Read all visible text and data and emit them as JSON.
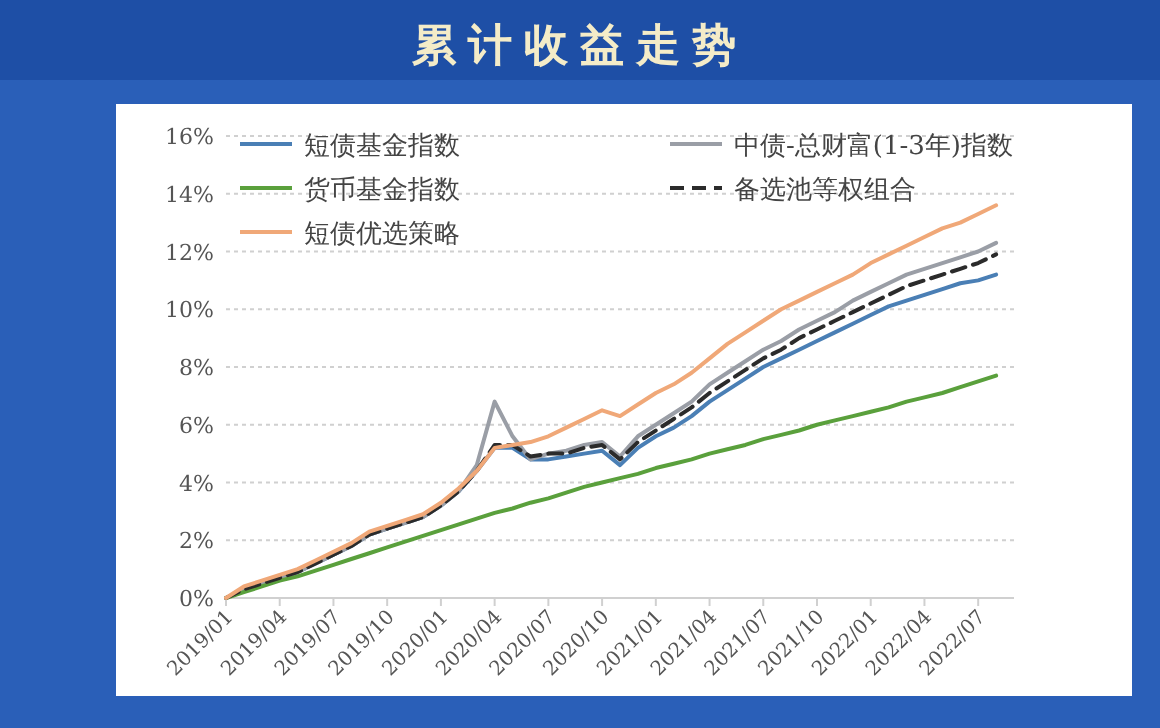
{
  "chart_data": {
    "type": "line",
    "title": "累计收益走势",
    "x": [
      "2019-01",
      "2019-02",
      "2019-03",
      "2019-04",
      "2019-05",
      "2019-06",
      "2019-07",
      "2019-08",
      "2019-09",
      "2019-10",
      "2019-11",
      "2019-12",
      "2020-01",
      "2020-02",
      "2020-03",
      "2020-04",
      "2020-05",
      "2020-06",
      "2020-07",
      "2020-08",
      "2020-09",
      "2020-10",
      "2020-11",
      "2020-12",
      "2021-01",
      "2021-02",
      "2021-03",
      "2021-04",
      "2021-05",
      "2021-06",
      "2021-07",
      "2021-08",
      "2021-09",
      "2021-10",
      "2021-11",
      "2021-12",
      "2022-01",
      "2022-02",
      "2022-03",
      "2022-04",
      "2022-05",
      "2022-06",
      "2022-07",
      "2022-08"
    ],
    "series": [
      {
        "name": "短债基金指数",
        "color": "#4a7fb5",
        "values": [
          null,
          null,
          null,
          0.7,
          0.9,
          1.2,
          1.5,
          1.8,
          2.2,
          2.4,
          2.6,
          2.8,
          3.2,
          3.7,
          4.4,
          5.2,
          5.2,
          4.8,
          4.8,
          4.9,
          5.0,
          5.1,
          4.6,
          5.2,
          5.6,
          5.9,
          6.3,
          6.8,
          7.2,
          7.6,
          8.0,
          8.3,
          8.6,
          8.9,
          9.2,
          9.5,
          9.8,
          10.1,
          10.3,
          10.5,
          10.7,
          10.9,
          11.0,
          11.2
        ]
      },
      {
        "name": "中债-总财富(1-3年)指数",
        "color": "#9a9ea6",
        "values": [
          0,
          0.3,
          0.5,
          0.7,
          0.9,
          1.2,
          1.5,
          1.8,
          2.2,
          2.4,
          2.6,
          2.8,
          3.2,
          3.7,
          4.6,
          6.8,
          5.6,
          4.8,
          5.0,
          5.1,
          5.3,
          5.4,
          4.9,
          5.6,
          6.0,
          6.4,
          6.8,
          7.4,
          7.8,
          8.2,
          8.6,
          8.9,
          9.3,
          9.6,
          9.9,
          10.3,
          10.6,
          10.9,
          11.2,
          11.4,
          11.6,
          11.8,
          12.0,
          12.3
        ]
      },
      {
        "name": "货币基金指数",
        "color": "#5aa03c",
        "values": [
          0,
          0.2,
          0.4,
          0.6,
          0.75,
          0.95,
          1.15,
          1.35,
          1.55,
          1.75,
          1.95,
          2.15,
          2.35,
          2.55,
          2.75,
          2.95,
          3.1,
          3.3,
          3.45,
          3.65,
          3.85,
          4.0,
          4.15,
          4.3,
          4.5,
          4.65,
          4.8,
          5.0,
          5.15,
          5.3,
          5.5,
          5.65,
          5.8,
          6.0,
          6.15,
          6.3,
          6.45,
          6.6,
          6.8,
          6.95,
          7.1,
          7.3,
          7.5,
          7.7
        ]
      },
      {
        "name": "备选池等权组合",
        "color": "#2b2b2b",
        "line_style": "dashed",
        "values": [
          0,
          0.3,
          0.5,
          0.7,
          0.9,
          1.2,
          1.5,
          1.8,
          2.2,
          2.4,
          2.6,
          2.8,
          3.2,
          3.7,
          4.4,
          5.3,
          5.3,
          4.9,
          5.0,
          5.0,
          5.2,
          5.3,
          4.8,
          5.4,
          5.8,
          6.2,
          6.6,
          7.1,
          7.5,
          7.9,
          8.3,
          8.6,
          9.0,
          9.3,
          9.6,
          9.9,
          10.2,
          10.5,
          10.8,
          11.0,
          11.2,
          11.4,
          11.6,
          11.9
        ]
      },
      {
        "name": "短债优选策略",
        "color": "#f0a878",
        "values": [
          0,
          0.4,
          0.6,
          0.8,
          1.0,
          1.3,
          1.6,
          1.9,
          2.3,
          2.5,
          2.7,
          2.9,
          3.3,
          3.8,
          4.4,
          5.2,
          5.3,
          5.4,
          5.6,
          5.9,
          6.2,
          6.5,
          6.3,
          6.7,
          7.1,
          7.4,
          7.8,
          8.3,
          8.8,
          9.2,
          9.6,
          10.0,
          10.3,
          10.6,
          10.9,
          11.2,
          11.6,
          11.9,
          12.2,
          12.5,
          12.8,
          13.0,
          13.3,
          13.6
        ]
      }
    ],
    "xlim": [
      "2019-01",
      "2022-09"
    ],
    "xticks": [
      {
        "value": "2019-01",
        "label": "2019/01"
      },
      {
        "value": "2019-04",
        "label": "2019/04"
      },
      {
        "value": "2019-07",
        "label": "2019/07"
      },
      {
        "value": "2019-10",
        "label": "2019/10"
      },
      {
        "value": "2020-01",
        "label": "2020/01"
      },
      {
        "value": "2020-04",
        "label": "2020/04"
      },
      {
        "value": "2020-07",
        "label": "2020/07"
      },
      {
        "value": "2020-10",
        "label": "2020/10"
      },
      {
        "value": "2021-01",
        "label": "2021/01"
      },
      {
        "value": "2021-04",
        "label": "2021/04"
      },
      {
        "value": "2021-07",
        "label": "2021/07"
      },
      {
        "value": "2021-10",
        "label": "2021/10"
      },
      {
        "value": "2022-01",
        "label": "2022/01"
      },
      {
        "value": "2022-04",
        "label": "2022/04"
      },
      {
        "value": "2022-07",
        "label": "2022/07"
      }
    ],
    "ylim": [
      0,
      16
    ],
    "yticks": [
      {
        "value": 0,
        "label": "0%"
      },
      {
        "value": 2,
        "label": "2%"
      },
      {
        "value": 4,
        "label": "4%"
      },
      {
        "value": 6,
        "label": "6%"
      },
      {
        "value": 8,
        "label": "8%"
      },
      {
        "value": 10,
        "label": "10%"
      },
      {
        "value": 12,
        "label": "12%"
      },
      {
        "value": 14,
        "label": "14%"
      },
      {
        "value": 16,
        "label": "16%"
      }
    ],
    "grid": "y",
    "legend": "top left",
    "marker": "none"
  }
}
